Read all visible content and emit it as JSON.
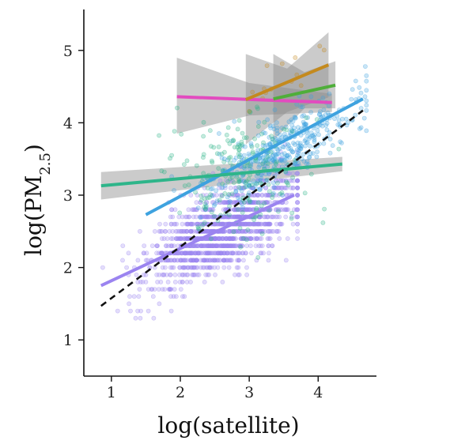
{
  "chart_data": {
    "type": "scatter",
    "title": "",
    "xlabel": "log(satellite)",
    "ylabel": "log(PM2.5)",
    "ylabel_parts": {
      "pre": "log(PM",
      "sub": "2.5",
      "post": ")"
    },
    "xlim": [
      0.6,
      4.8
    ],
    "ylim": [
      0.5,
      5.5
    ],
    "xticks": [
      1,
      2,
      3,
      4
    ],
    "yticks": [
      1,
      2,
      3,
      4,
      5
    ],
    "grid": false,
    "legend": "none",
    "reference_line": {
      "style": "dashed",
      "color": "#111111",
      "x": [
        0.85,
        4.65
      ],
      "y": [
        1.47,
        4.17
      ]
    },
    "series": [
      {
        "color": "#9b84f0",
        "points": {
          "x_center": 2.6,
          "x_sd": 0.55,
          "x_range": [
            0.85,
            3.7
          ],
          "y_intercept": 1.25,
          "y_slope": 0.48,
          "y_noise": 0.28,
          "count": 1400,
          "y_step": 0.1
        },
        "fit": {
          "x": [
            0.85,
            3.65
          ],
          "y": [
            1.75,
            3.0
          ]
        },
        "band": null
      },
      {
        "color": "#3ea2df",
        "points": {
          "x_center": 3.5,
          "x_sd": 0.6,
          "x_range": [
            1.3,
            4.7
          ],
          "y_intercept": 1.75,
          "y_slope": 0.54,
          "y_noise": 0.22,
          "count": 420
        },
        "fit": {
          "x": [
            1.5,
            4.65
          ],
          "y": [
            2.73,
            4.33
          ]
        },
        "band": null
      },
      {
        "color": "#2eb58a",
        "points": {
          "x_center": 2.9,
          "x_sd": 0.45,
          "x_range": [
            0.9,
            4.3
          ],
          "y_intercept": 2.7,
          "y_slope": 0.2,
          "y_noise": 0.45,
          "count": 220
        },
        "fit": {
          "x": [
            0.85,
            4.35
          ],
          "y": [
            3.13,
            3.43
          ]
        },
        "band": {
          "x": [
            0.85,
            4.35
          ],
          "upper": [
            3.32,
            3.53
          ],
          "lower": [
            2.94,
            3.33
          ]
        }
      },
      {
        "color": "#e24bbf",
        "points": null,
        "fit": {
          "x": [
            1.95,
            4.2
          ],
          "y": [
            4.36,
            4.28
          ]
        },
        "band": {
          "x": [
            1.95,
            3.0,
            4.2
          ],
          "upper": [
            4.9,
            4.55,
            4.4
          ],
          "lower": [
            3.85,
            4.1,
            4.15
          ]
        }
      },
      {
        "color": "#c48a1e",
        "points": {
          "x_center": 3.6,
          "x_sd": 0.3,
          "x_range": [
            3.0,
            4.3
          ],
          "y_intercept": 3.5,
          "y_slope": 0.3,
          "y_noise": 0.25,
          "count": 14
        },
        "fit": {
          "x": [
            2.95,
            4.15
          ],
          "y": [
            4.32,
            4.8
          ]
        },
        "band": {
          "x": [
            2.95,
            3.55,
            4.15
          ],
          "upper": [
            4.95,
            4.75,
            5.25
          ],
          "lower": [
            3.7,
            4.15,
            4.35
          ]
        }
      },
      {
        "color": "#4fae3a",
        "points": null,
        "fit": {
          "x": [
            3.35,
            4.25
          ],
          "y": [
            4.33,
            4.52
          ]
        },
        "band": {
          "x": [
            3.35,
            3.8,
            4.25
          ],
          "upper": [
            4.95,
            4.7,
            4.85
          ],
          "lower": [
            3.75,
            4.2,
            4.2
          ]
        }
      }
    ]
  }
}
